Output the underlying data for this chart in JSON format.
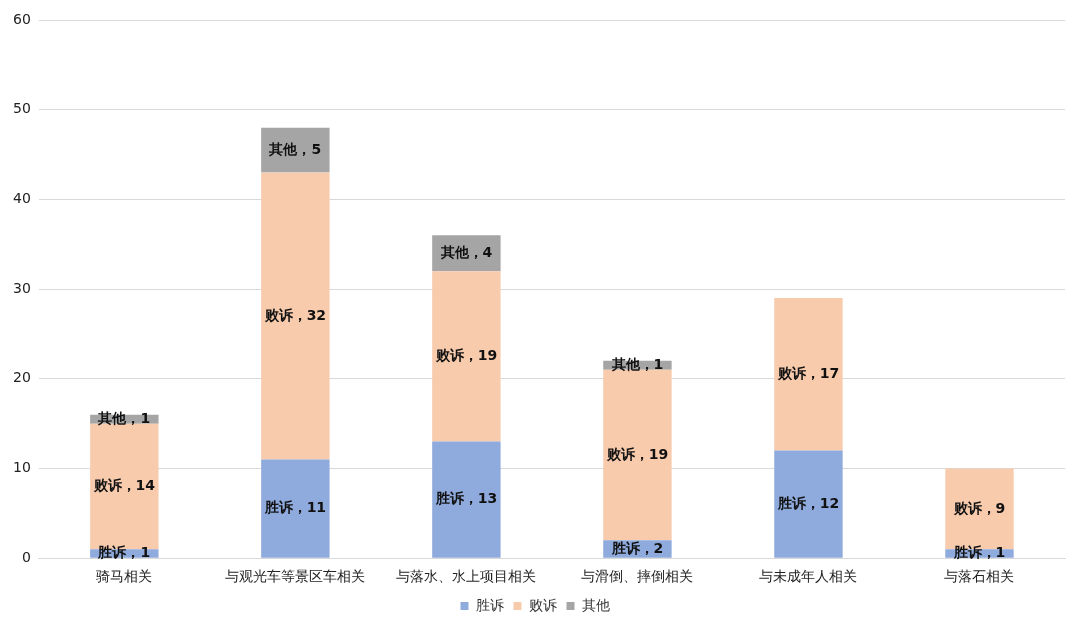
{
  "chart_data": {
    "type": "bar",
    "stacked": true,
    "categories": [
      "骑马相关",
      "与观光车等景区车相关",
      "与落水、水上项目相关",
      "与滑倒、摔倒相关",
      "与未成年人相关",
      "与落石相关"
    ],
    "series": [
      {
        "name": "胜诉",
        "color": "#8faadc",
        "values": [
          1,
          11,
          13,
          2,
          12,
          1
        ],
        "value_labels": [
          "胜诉，1",
          "胜诉，11",
          "胜诉，13",
          "胜诉，2",
          "胜诉，12",
          "胜诉，1"
        ]
      },
      {
        "name": "败诉",
        "color": "#f8cbad",
        "values": [
          14,
          32,
          19,
          19,
          17,
          9
        ],
        "value_labels": [
          "败诉，14",
          "败诉，32",
          "败诉，19",
          "败诉，19",
          "败诉，17",
          "败诉，9"
        ]
      },
      {
        "name": "其他",
        "color": "#a5a5a5",
        "values": [
          1,
          5,
          4,
          1,
          null,
          null
        ],
        "value_labels": [
          "其他，1",
          "其他，5",
          "其他，4",
          "其他，1",
          null,
          null
        ]
      }
    ],
    "ylim": [
      0,
      60
    ],
    "yticks": [
      0,
      10,
      20,
      30,
      40,
      50,
      60
    ],
    "grid": "y",
    "legend": "bottom"
  }
}
